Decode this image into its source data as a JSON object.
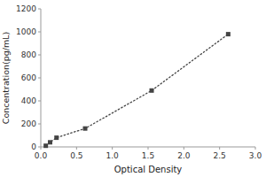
{
  "chart_data": {
    "type": "line",
    "x": [
      0.07,
      0.13,
      0.22,
      0.62,
      1.55,
      2.62
    ],
    "values": [
      10,
      40,
      80,
      160,
      490,
      980
    ],
    "xlabel": "Optical Density",
    "ylabel": "Concentration(pg/mL)",
    "xlim": [
      0,
      3
    ],
    "ylim": [
      0,
      1200
    ],
    "xticks": [
      {
        "value": 0,
        "label": "0.0"
      },
      0.5,
      {
        "value": 1,
        "label": "1.0"
      },
      1.5,
      {
        "value": 2,
        "label": "2.0"
      },
      2.5,
      {
        "value": 3,
        "label": "3.0"
      }
    ],
    "yticks": [
      0,
      200,
      400,
      600,
      800,
      1000,
      1200
    ],
    "color": "#444444",
    "marker": "square",
    "line_style": "dotted",
    "grid": false
  }
}
